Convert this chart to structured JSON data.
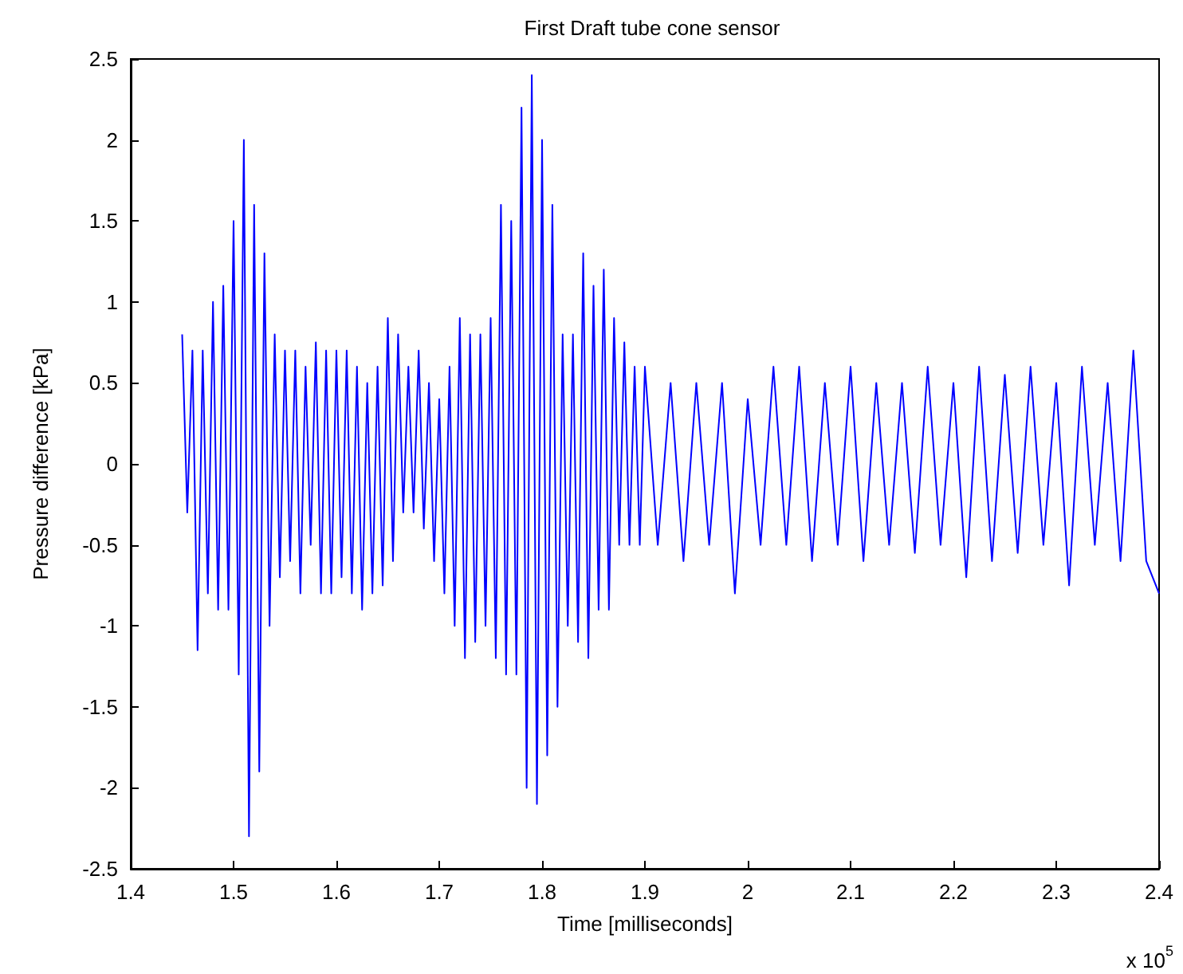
{
  "chart_data": {
    "type": "line",
    "title": "First Draft tube cone sensor",
    "xlabel": "Time [milliseconds]",
    "ylabel": "Pressure difference [kPa]",
    "annotations": [
      "x 10$^{5}$"
    ],
    "xlim": [
      1.4,
      2.4
    ],
    "xticks": [
      1.4,
      1.5,
      1.6,
      1.7,
      1.8,
      1.9,
      2,
      2.1,
      2.2,
      2.3,
      2.4
    ],
    "ylim": [
      -2.5,
      2.5
    ],
    "yticks": [
      -2.5,
      -2,
      -1.5,
      -1,
      -0.5,
      0,
      0.5,
      1,
      1.5,
      2,
      2.5
    ],
    "grid": false,
    "marker": "none",
    "line_style": "solid",
    "series": [
      {
        "color": "#0000ff",
        "x": [
          1.45,
          1.455,
          1.46,
          1.465,
          1.47,
          1.475,
          1.48,
          1.485,
          1.49,
          1.495,
          1.5,
          1.505,
          1.51,
          1.515,
          1.52,
          1.525,
          1.53,
          1.535,
          1.54,
          1.545,
          1.55,
          1.555,
          1.56,
          1.565,
          1.57,
          1.575,
          1.58,
          1.585,
          1.59,
          1.595,
          1.6,
          1.605,
          1.61,
          1.615,
          1.62,
          1.625,
          1.63,
          1.635,
          1.64,
          1.645,
          1.65,
          1.655,
          1.66,
          1.665,
          1.67,
          1.675,
          1.68,
          1.685,
          1.69,
          1.695,
          1.7,
          1.705,
          1.71,
          1.715,
          1.72,
          1.725,
          1.73,
          1.735,
          1.74,
          1.745,
          1.75,
          1.755,
          1.76,
          1.765,
          1.77,
          1.775,
          1.78,
          1.785,
          1.79,
          1.795,
          1.8,
          1.805,
          1.81,
          1.815,
          1.82,
          1.825,
          1.83,
          1.835,
          1.84,
          1.845,
          1.85,
          1.855,
          1.86,
          1.865,
          1.87,
          1.875,
          1.88,
          1.885,
          1.89,
          1.895,
          1.9,
          1.9125,
          1.925,
          1.9375,
          1.95,
          1.9625,
          1.975,
          1.9875,
          2.0,
          2.0125,
          2.025,
          2.0375,
          2.05,
          2.0625,
          2.075,
          2.0875,
          2.1,
          2.1125,
          2.125,
          2.1375,
          2.15,
          2.1625,
          2.175,
          2.1875,
          2.2,
          2.2125,
          2.225,
          2.2375,
          2.25,
          2.2625,
          2.275,
          2.2875,
          2.3,
          2.3125,
          2.325,
          2.3375,
          2.35,
          2.3625,
          2.375,
          2.3875,
          2.4
        ],
        "values": [
          0.8,
          -0.3,
          0.7,
          -1.15,
          0.7,
          -0.8,
          1.0,
          -0.9,
          1.1,
          -0.9,
          1.5,
          -1.3,
          2.0,
          -2.3,
          1.6,
          -1.9,
          1.3,
          -1.0,
          0.8,
          -0.7,
          0.7,
          -0.6,
          0.7,
          -0.8,
          0.6,
          -0.5,
          0.75,
          -0.8,
          0.7,
          -0.8,
          0.7,
          -0.7,
          0.7,
          -0.8,
          0.6,
          -0.9,
          0.5,
          -0.8,
          0.6,
          -0.75,
          0.9,
          -0.6,
          0.8,
          -0.3,
          0.6,
          -0.3,
          0.7,
          -0.4,
          0.5,
          -0.6,
          0.4,
          -0.8,
          0.6,
          -1.0,
          0.9,
          -1.2,
          0.8,
          -1.1,
          0.8,
          -1.0,
          0.9,
          -1.2,
          1.6,
          -1.3,
          1.5,
          -1.3,
          2.2,
          -2.0,
          2.4,
          -2.1,
          2.0,
          -1.8,
          1.6,
          -1.5,
          0.8,
          -1.0,
          0.8,
          -1.1,
          1.3,
          -1.2,
          1.1,
          -0.9,
          1.2,
          -0.9,
          0.9,
          -0.5,
          0.75,
          -0.5,
          0.6,
          -0.5,
          0.6,
          -0.5,
          0.5,
          -0.6,
          0.5,
          -0.5,
          0.5,
          -0.8,
          0.4,
          -0.5,
          0.6,
          -0.5,
          0.6,
          -0.6,
          0.5,
          -0.5,
          0.6,
          -0.6,
          0.5,
          -0.5,
          0.5,
          -0.55,
          0.6,
          -0.5,
          0.5,
          -0.7,
          0.6,
          -0.6,
          0.55,
          -0.55,
          0.6,
          -0.5,
          0.5,
          -0.75,
          0.6,
          -0.5,
          0.5,
          -0.6,
          0.7,
          -0.6,
          -0.8
        ]
      }
    ]
  }
}
